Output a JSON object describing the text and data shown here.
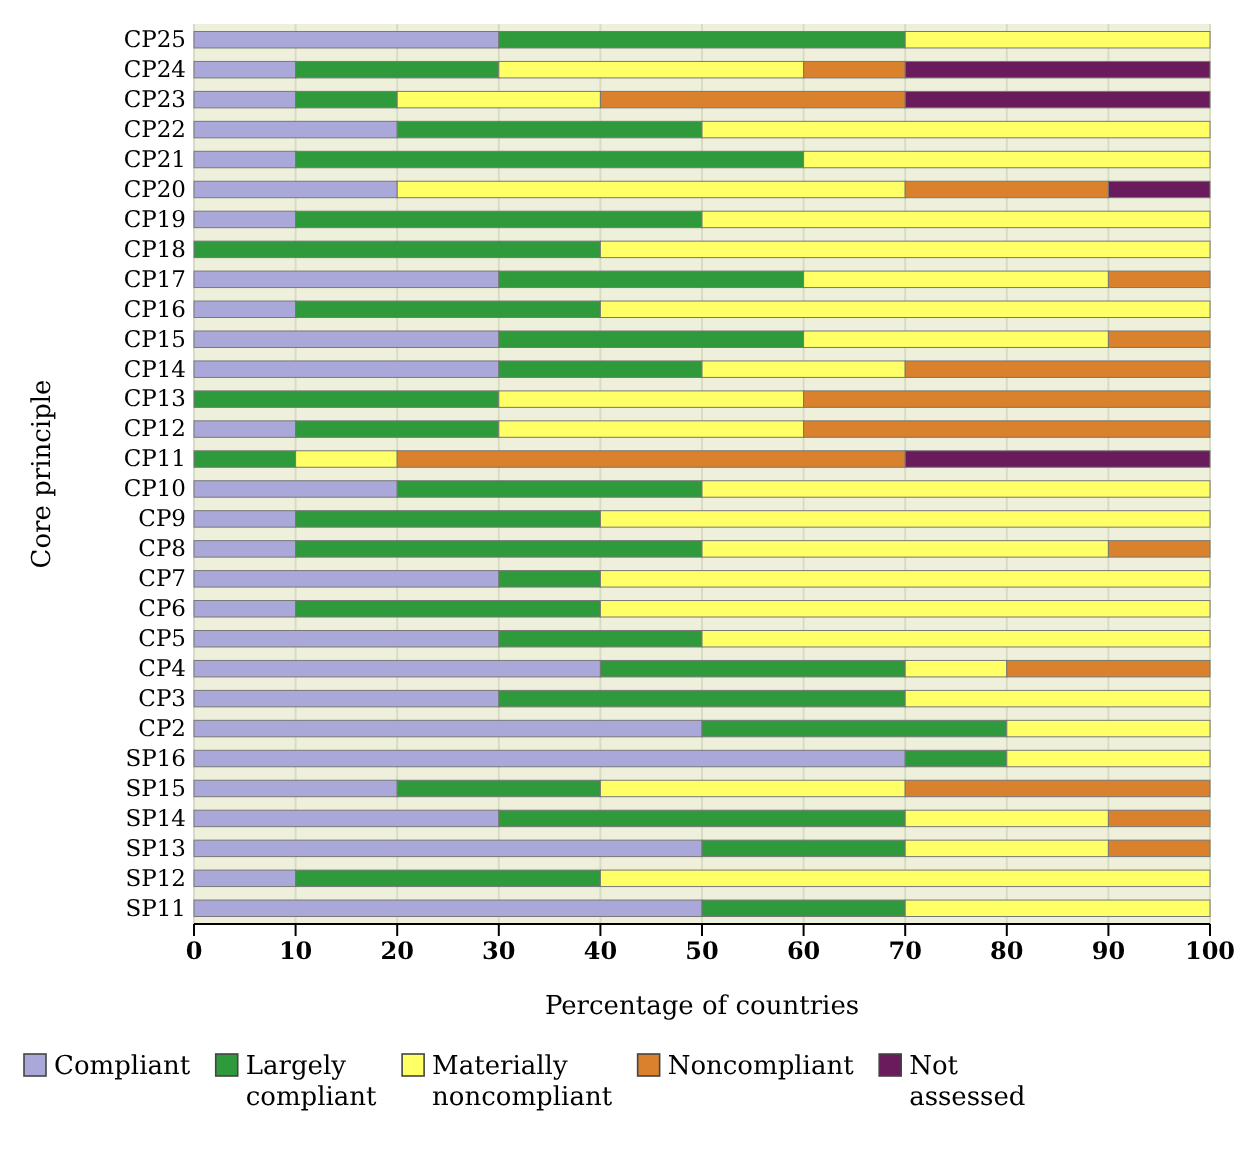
{
  "chart_data": {
    "type": "bar",
    "orientation": "horizontal",
    "stacked": true,
    "ylabel": "Core principle",
    "xlabel": "Percentage of countries",
    "categories": [
      "CP25",
      "CP24",
      "CP23",
      "CP22",
      "CP21",
      "CP20",
      "CP19",
      "CP18",
      "CP17",
      "CP16",
      "CP15",
      "CP14",
      "CP13",
      "CP12",
      "CP11",
      "CP10",
      "CP9",
      "CP8",
      "CP7",
      "CP6",
      "CP5",
      "CP4",
      "CP3",
      "CP2",
      "SP16",
      "SP15",
      "SP14",
      "SP13",
      "SP12",
      "SP11"
    ],
    "xlim": [
      0,
      100
    ],
    "xticks": [
      0,
      10,
      20,
      30,
      40,
      50,
      60,
      70,
      80,
      90,
      100
    ],
    "grid": "x",
    "legend": "bottom",
    "series": [
      {
        "name": "Compliant",
        "color": "#aaa8d8",
        "values": [
          30,
          10,
          10,
          20,
          10,
          20,
          10,
          0,
          30,
          10,
          30,
          30,
          0,
          10,
          0,
          20,
          10,
          10,
          30,
          10,
          30,
          40,
          30,
          50,
          70,
          20,
          30,
          50,
          10,
          50
        ]
      },
      {
        "name": "Largely compliant",
        "color": "#2f9a3c",
        "values": [
          40,
          20,
          10,
          30,
          50,
          0,
          40,
          40,
          30,
          30,
          30,
          20,
          30,
          20,
          10,
          30,
          30,
          40,
          10,
          30,
          20,
          30,
          40,
          30,
          10,
          20,
          40,
          20,
          30,
          20
        ]
      },
      {
        "name": "Materially noncompliant",
        "color": "#ffff66",
        "values": [
          30,
          30,
          20,
          50,
          40,
          50,
          50,
          60,
          30,
          60,
          30,
          20,
          30,
          30,
          10,
          50,
          60,
          40,
          60,
          60,
          50,
          10,
          30,
          20,
          20,
          30,
          20,
          20,
          60,
          30
        ]
      },
      {
        "name": "Noncompliant",
        "color": "#d9812c",
        "values": [
          0,
          10,
          30,
          0,
          0,
          20,
          0,
          0,
          10,
          0,
          10,
          30,
          40,
          40,
          50,
          0,
          0,
          10,
          0,
          0,
          0,
          20,
          0,
          0,
          0,
          30,
          10,
          10,
          0,
          0
        ]
      },
      {
        "name": "Not assessed",
        "color": "#6a1b5c",
        "values": [
          0,
          30,
          30,
          0,
          0,
          10,
          0,
          0,
          0,
          0,
          0,
          0,
          0,
          0,
          30,
          0,
          0,
          0,
          0,
          0,
          0,
          0,
          0,
          0,
          0,
          0,
          0,
          0,
          0,
          0
        ]
      }
    ]
  }
}
